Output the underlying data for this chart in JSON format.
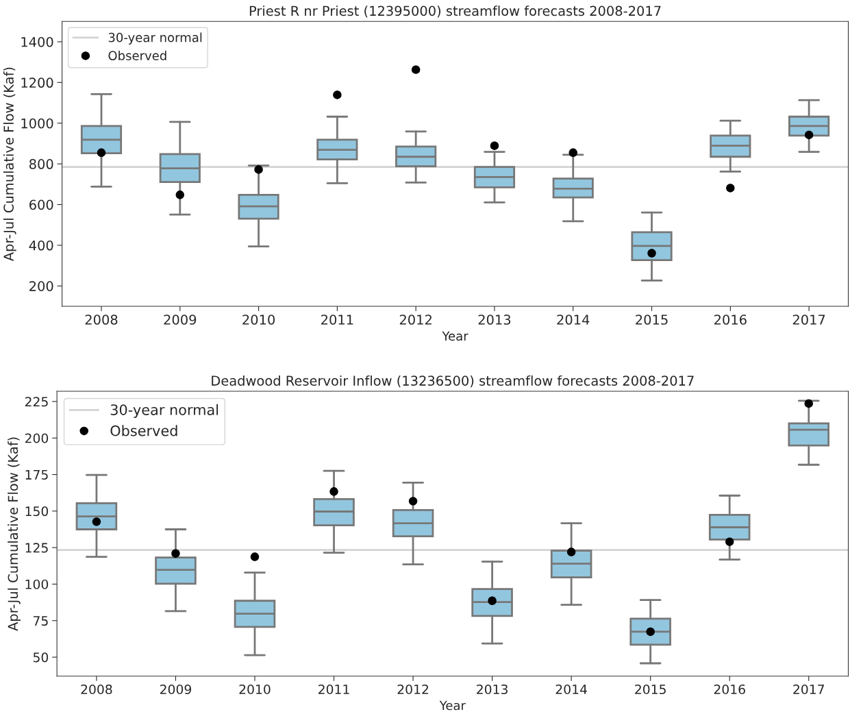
{
  "chart_data": [
    {
      "type": "box",
      "title": "Priest R nr Priest (12395000) streamflow forecasts 2008-2017",
      "xlabel": "Year",
      "ylabel": "Apr-Jul Cumulative Flow (Kaf)",
      "categories": [
        "2008",
        "2009",
        "2010",
        "2011",
        "2012",
        "2013",
        "2014",
        "2015",
        "2016",
        "2017"
      ],
      "series": [
        {
          "type": "box",
          "color": "#92c6df",
          "boxes": [
            {
              "low": 688,
              "q1": 852,
              "median": 919,
              "q3": 986,
              "high": 1143
            },
            {
              "low": 551,
              "q1": 711,
              "median": 778,
              "q3": 848,
              "high": 1006
            },
            {
              "low": 394,
              "q1": 531,
              "median": 591,
              "q3": 648,
              "high": 792
            },
            {
              "low": 705,
              "q1": 822,
              "median": 869,
              "q3": 919,
              "high": 1032
            },
            {
              "low": 708,
              "q1": 788,
              "median": 835,
              "q3": 885,
              "high": 959
            },
            {
              "low": 611,
              "q1": 685,
              "median": 735,
              "q3": 785,
              "high": 859
            },
            {
              "low": 518,
              "q1": 635,
              "median": 678,
              "q3": 728,
              "high": 845
            },
            {
              "low": 227,
              "q1": 327,
              "median": 397,
              "q3": 464,
              "high": 561
            },
            {
              "low": 762,
              "q1": 835,
              "median": 889,
              "q3": 939,
              "high": 1012
            },
            {
              "low": 859,
              "q1": 939,
              "median": 986,
              "q3": 1032,
              "high": 1113
            }
          ]
        },
        {
          "type": "scatter",
          "name": "Observed",
          "color": "#000000",
          "values": [
            855,
            648,
            772,
            1139,
            1263,
            889,
            855,
            361,
            681,
            942
          ]
        }
      ],
      "ref_lines": [
        {
          "axis": "y",
          "value": 785,
          "label": "30-year normal",
          "color": "#d3d3d3"
        }
      ],
      "ylim": [
        100,
        1500
      ],
      "yticks": [
        200,
        400,
        600,
        800,
        1000,
        1200,
        1400
      ],
      "legend": "top left",
      "grid": false
    },
    {
      "type": "box",
      "title": "Deadwood Reservoir Inflow (13236500) streamflow forecasts 2008-2017",
      "xlabel": "Year",
      "ylabel": "Apr-Jul Cumulative Flow (Kaf)",
      "categories": [
        "2008",
        "2009",
        "2010",
        "2011",
        "2012",
        "2013",
        "2014",
        "2015",
        "2016",
        "2017"
      ],
      "series": [
        {
          "type": "box",
          "color": "#92c6df",
          "boxes": [
            {
              "low": 118.7,
              "q1": 137.5,
              "median": 146.4,
              "q3": 155.4,
              "high": 174.7
            },
            {
              "low": 81.5,
              "q1": 100.3,
              "median": 109.8,
              "q3": 118.2,
              "high": 137.5
            },
            {
              "low": 51.4,
              "q1": 70.7,
              "median": 79.7,
              "q3": 88.6,
              "high": 107.9
            },
            {
              "low": 121.5,
              "q1": 140.3,
              "median": 149.7,
              "q3": 158.2,
              "high": 177.5
            },
            {
              "low": 113.5,
              "q1": 132.8,
              "median": 141.7,
              "q3": 150.7,
              "high": 169.5
            },
            {
              "low": 59.4,
              "q1": 78.2,
              "median": 87.7,
              "q3": 96.6,
              "high": 115.4
            },
            {
              "low": 85.8,
              "q1": 104.6,
              "median": 114.0,
              "q3": 122.9,
              "high": 141.7
            },
            {
              "low": 45.8,
              "q1": 58.5,
              "median": 67.4,
              "q3": 76.4,
              "high": 89.1
            },
            {
              "low": 116.8,
              "q1": 130.5,
              "median": 138.9,
              "q3": 147.4,
              "high": 160.6
            },
            {
              "low": 181.7,
              "q1": 194.9,
              "median": 205.7,
              "q3": 210.0,
              "high": 225.5
            }
          ]
        },
        {
          "type": "scatter",
          "name": "Observed",
          "color": "#000000",
          "values": [
            142.7,
            121.0,
            118.7,
            163.4,
            156.8,
            88.6,
            122.0,
            67.4,
            129.0,
            223.6
          ]
        }
      ],
      "ref_lines": [
        {
          "axis": "y",
          "value": 123.4,
          "label": "30-year normal",
          "color": "#d3d3d3"
        }
      ],
      "ylim": [
        37,
        232
      ],
      "yticks": [
        50,
        75,
        100,
        125,
        150,
        175,
        200,
        225
      ],
      "legend": "top left",
      "grid": false
    }
  ]
}
